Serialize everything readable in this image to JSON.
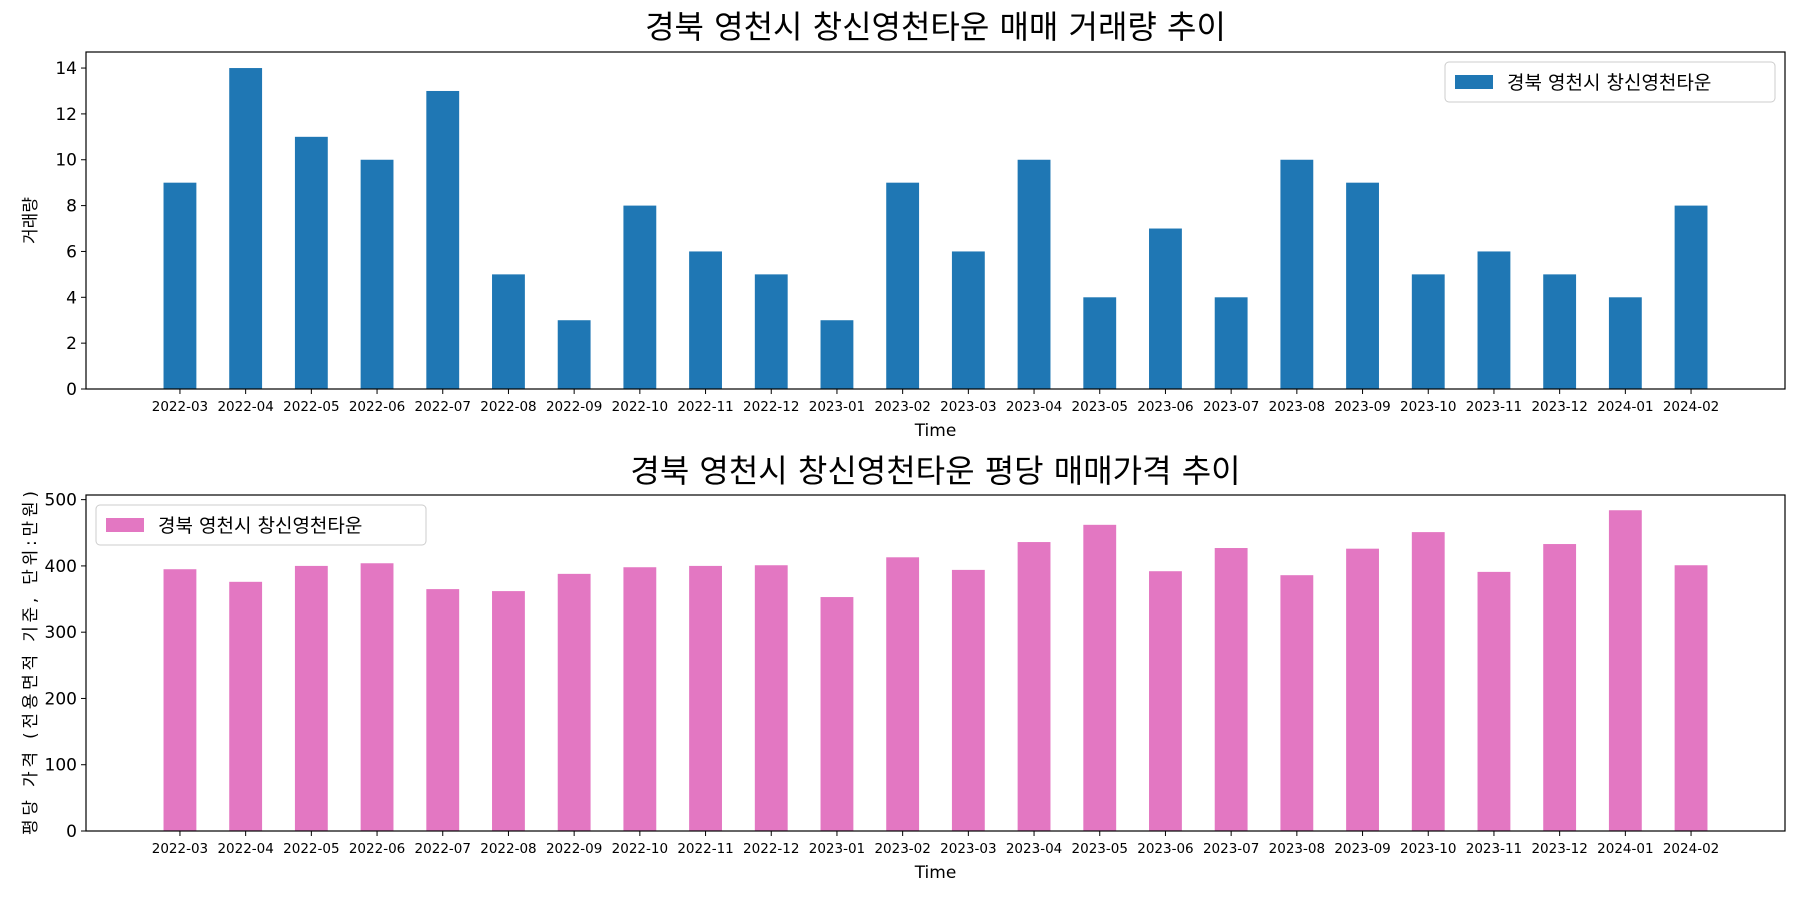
{
  "chart_data": [
    {
      "type": "bar",
      "title": "경북 영천시 창신영천타운 매매 거래량 추이",
      "xlabel": "Time",
      "ylabel": "거래량",
      "ylim": [
        0,
        14.7
      ],
      "yticks": [
        0,
        2,
        4,
        6,
        8,
        10,
        12,
        14
      ],
      "grid": false,
      "legend_position": "top-right",
      "color": "#1f77b4",
      "categories": [
        "2022-03",
        "2022-04",
        "2022-05",
        "2022-06",
        "2022-07",
        "2022-08",
        "2022-09",
        "2022-10",
        "2022-11",
        "2022-12",
        "2023-01",
        "2023-02",
        "2023-03",
        "2023-04",
        "2023-05",
        "2023-06",
        "2023-07",
        "2023-08",
        "2023-09",
        "2023-10",
        "2023-11",
        "2023-12",
        "2024-01",
        "2024-02"
      ],
      "series": [
        {
          "name": "경북 영천시 창신영천타운",
          "values": [
            9,
            14,
            11,
            10,
            13,
            5,
            3,
            8,
            6,
            5,
            3,
            9,
            6,
            10,
            4,
            7,
            4,
            10,
            9,
            5,
            6,
            5,
            4,
            8
          ]
        }
      ]
    },
    {
      "type": "bar",
      "title": "경북 영천시 창신영천타운 평당 매매가격 추이",
      "xlabel": "Time",
      "ylabel": "평당 가격 (전용면적 기준, 단위:만원)",
      "ylim": [
        0,
        507
      ],
      "yticks": [
        0,
        100,
        200,
        300,
        400,
        500
      ],
      "grid": false,
      "legend_position": "top-left",
      "color": "#e377c2",
      "categories": [
        "2022-03",
        "2022-04",
        "2022-05",
        "2022-06",
        "2022-07",
        "2022-08",
        "2022-09",
        "2022-10",
        "2022-11",
        "2022-12",
        "2023-01",
        "2023-02",
        "2023-03",
        "2023-04",
        "2023-05",
        "2023-06",
        "2023-07",
        "2023-08",
        "2023-09",
        "2023-10",
        "2023-11",
        "2023-12",
        "2024-01",
        "2024-02"
      ],
      "series": [
        {
          "name": "경북 영천시 창신영천타운",
          "values": [
            395,
            376,
            400,
            404,
            365,
            362,
            388,
            398,
            400,
            401,
            353,
            413,
            394,
            436,
            462,
            392,
            427,
            386,
            426,
            451,
            391,
            433,
            484,
            401
          ]
        }
      ]
    }
  ]
}
